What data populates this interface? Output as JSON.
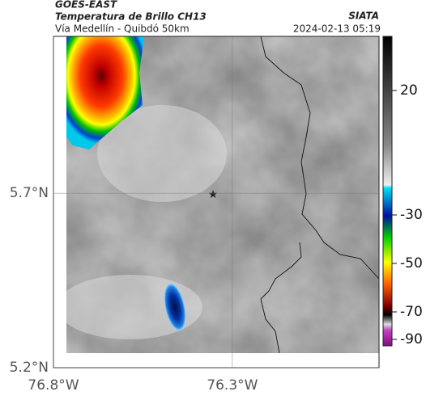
{
  "header": {
    "satellite": "GOES-EAST",
    "product": "Temperatura de Brillo CH13",
    "location": "Vía Medellín - Quibdó 50km",
    "source": "SIATA",
    "datetime": "2024-02-13 05:19"
  },
  "map": {
    "xlim": [
      -76.8,
      -75.89
    ],
    "ylim": [
      5.2,
      6.15
    ],
    "xticks": [
      {
        "value": -76.8,
        "label": "76.8°W"
      },
      {
        "value": -76.3,
        "label": "76.3°W"
      }
    ],
    "yticks": [
      {
        "value": 5.7,
        "label": "5.7°N"
      },
      {
        "value": 5.2,
        "label": "5.2°N"
      }
    ]
  },
  "colorbar": {
    "ticks": [
      20,
      -30,
      -50,
      -70,
      -90
    ]
  }
}
